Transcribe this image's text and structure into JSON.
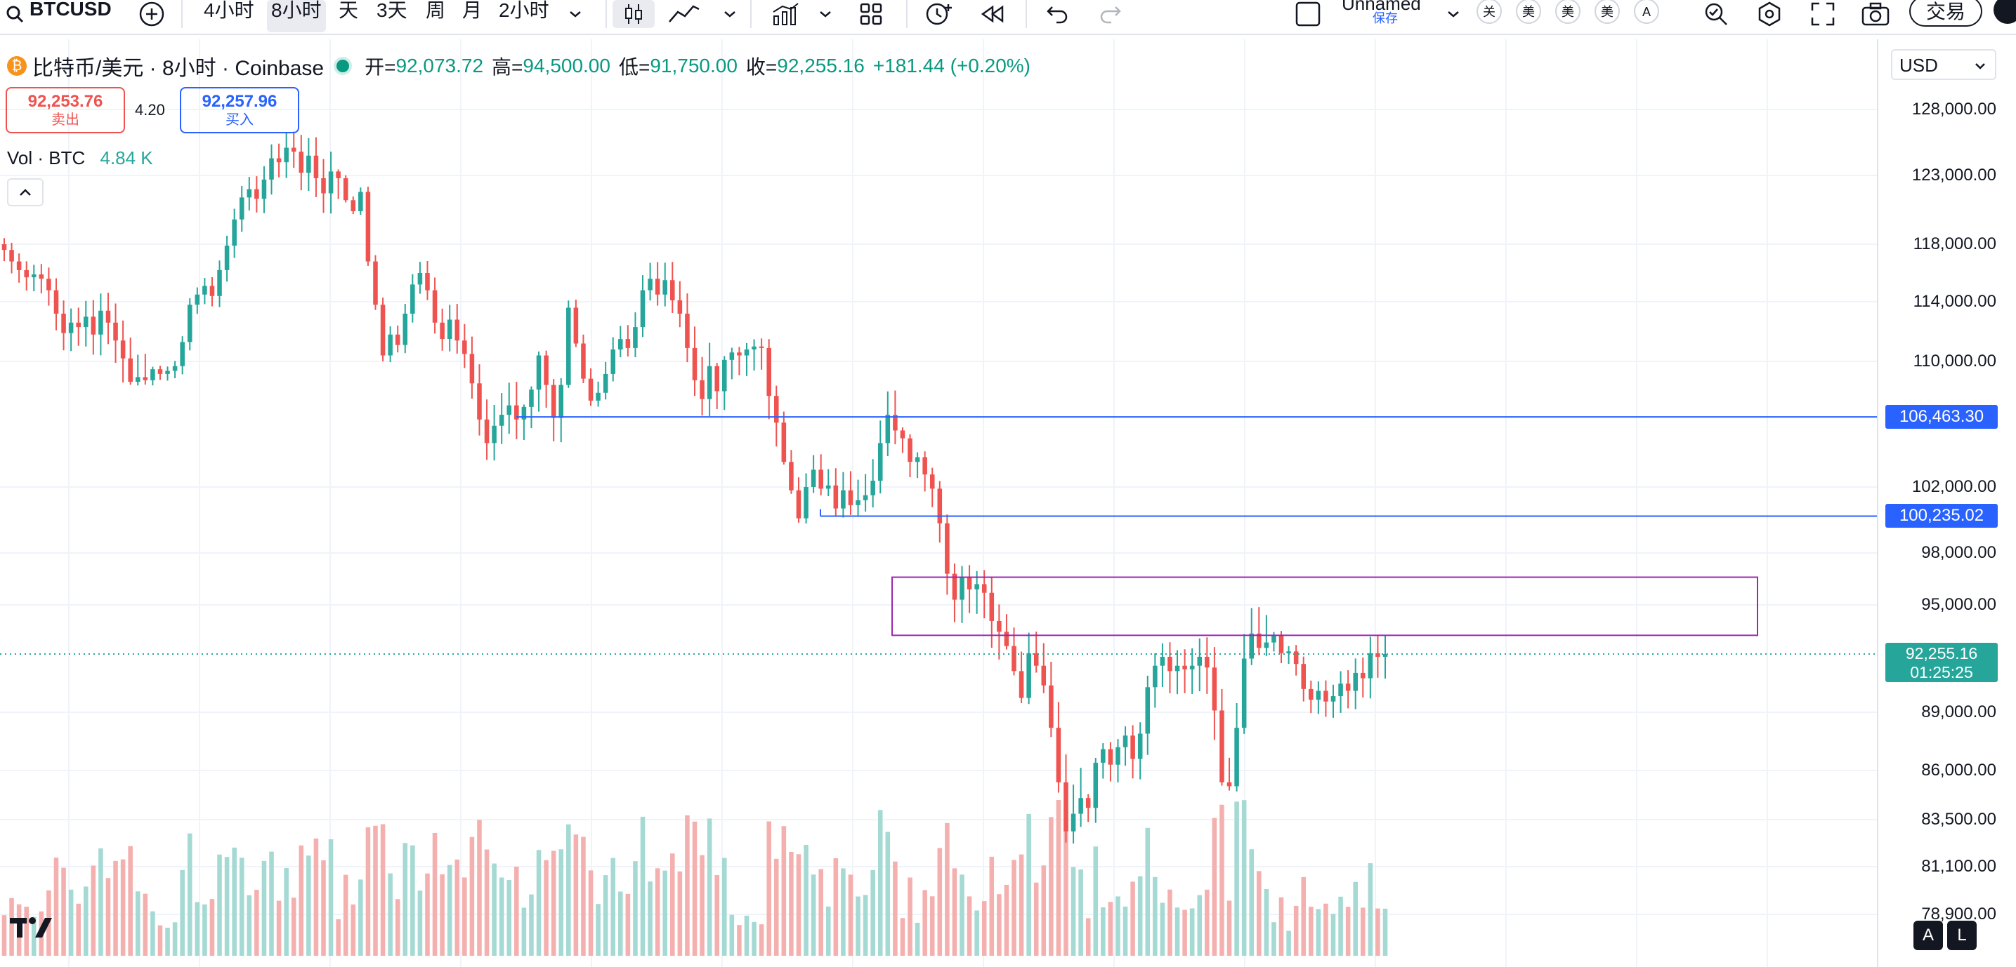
{
  "toolbar": {
    "symbol": "BTCUSD",
    "intervals": [
      "4小时",
      "8小时",
      "天",
      "3天",
      "周",
      "月",
      "2小时"
    ],
    "active_interval": "8小时",
    "layout_name": "Unnamed",
    "layout_save": "保存",
    "chips": [
      "关",
      "美",
      "美",
      "美",
      "A"
    ],
    "trade_label": "交易"
  },
  "legend": {
    "title": "比特币/美元 · 8小时 · Coinbase",
    "open_label": "开=",
    "open": "92,073.72",
    "high_label": "高=",
    "high": "94,500.00",
    "low_label": "低=",
    "low": "91,750.00",
    "close_label": "收=",
    "close": "92,255.16",
    "change": "+181.44 (+0.20%)"
  },
  "bid_ask": {
    "sell_price": "92,253.76",
    "sell_label": "卖出",
    "spread": "4.20",
    "buy_price": "92,257.96",
    "buy_label": "买入"
  },
  "volume_legend": {
    "label": "Vol · BTC",
    "value": "4.84 K"
  },
  "currency": "USD",
  "colors": {
    "up": "#26a69a",
    "down": "#ef5350",
    "vol_up": "#a5d9d3",
    "vol_down": "#f4b0ae",
    "hline": "#2962ff",
    "box": "#9c27b0",
    "current": "#26a69a"
  },
  "price_tags": {
    "line1": "106,463.30",
    "line2": "100,235.02",
    "current_price": "92,255.16",
    "countdown": "01:25:25"
  },
  "bottom_buttons": {
    "a": "A",
    "l": "L"
  },
  "chart_data": {
    "type": "candlestick",
    "title": "比特币/美元 · 8小时 · Coinbase",
    "y_ticks": [
      "128,000.00",
      "123,000.00",
      "118,000.00",
      "114,000.00",
      "110,000.00",
      "102,000.00",
      "98,000.00",
      "95,000.00",
      "89,000.00",
      "86,000.00",
      "83,500.00",
      "81,100.00",
      "78,900.00"
    ],
    "y_ticks_num": [
      128000,
      123000,
      118000,
      114000,
      110000,
      102000,
      98000,
      95000,
      89000,
      86000,
      83500,
      81100,
      78900
    ],
    "series": [
      {
        "name": "BTCUSD",
        "values": [
          117600,
          116800,
          116200,
          115700,
          115900,
          115600,
          114800,
          113200,
          111900,
          112600,
          112300,
          113000,
          111800,
          113400,
          112600,
          111400,
          110200,
          108700,
          109000,
          108800,
          109500,
          109200,
          109400,
          109700,
          111300,
          113800,
          114500,
          115100,
          114400,
          116200,
          117900,
          119800,
          121400,
          122000,
          121300,
          122700,
          124300,
          124000,
          125100,
          124800,
          123200,
          124500,
          122800,
          121700,
          123300,
          122800,
          121200,
          120400,
          121800,
          116800,
          113800,
          110400,
          111800,
          111100,
          113200,
          115200,
          116000,
          114800,
          112600,
          111500,
          112800,
          111400,
          110500,
          108600,
          106300,
          104800,
          105900,
          106600,
          107200,
          106300,
          107100,
          108200,
          110400,
          108500,
          106400,
          108500,
          113600,
          111200,
          108900,
          107500,
          108000,
          109200,
          110800,
          111500,
          110900,
          112300,
          114800,
          115600,
          114500,
          115500,
          114100,
          113200,
          110900,
          108800,
          107600,
          109700,
          108100,
          110100,
          110600,
          110400,
          110800,
          111000,
          110900,
          107800,
          106100,
          103600,
          101800,
          100100,
          102000,
          103100,
          101900,
          102100,
          100700,
          101800,
          100900,
          101200,
          101500,
          102400,
          104800,
          106600,
          105600,
          105100,
          103600,
          103900,
          102800,
          101900,
          99800,
          96800,
          95300,
          96600,
          95900,
          96200,
          95700,
          94100,
          93500,
          92700,
          91300,
          89800,
          92300,
          91600,
          90500,
          88200,
          85400,
          82900,
          83800,
          84600,
          84100,
          86400,
          87100,
          86300,
          87200,
          87800,
          86600,
          87900,
          90400,
          91600,
          92100,
          91300,
          91600,
          91400,
          91600,
          92100,
          91500,
          89100,
          85400,
          85200,
          88200,
          92000,
          93400,
          92600,
          92900,
          93300,
          92300,
          92400,
          91700,
          90300,
          89700,
          90200,
          89600,
          89900,
          90600,
          90200,
          91200,
          90900,
          92300,
          92100,
          92255
        ]
      }
    ],
    "hlines": [
      106463.3,
      100235.02
    ],
    "zone": [
      93300,
      96600
    ],
    "current": 92255.16
  }
}
